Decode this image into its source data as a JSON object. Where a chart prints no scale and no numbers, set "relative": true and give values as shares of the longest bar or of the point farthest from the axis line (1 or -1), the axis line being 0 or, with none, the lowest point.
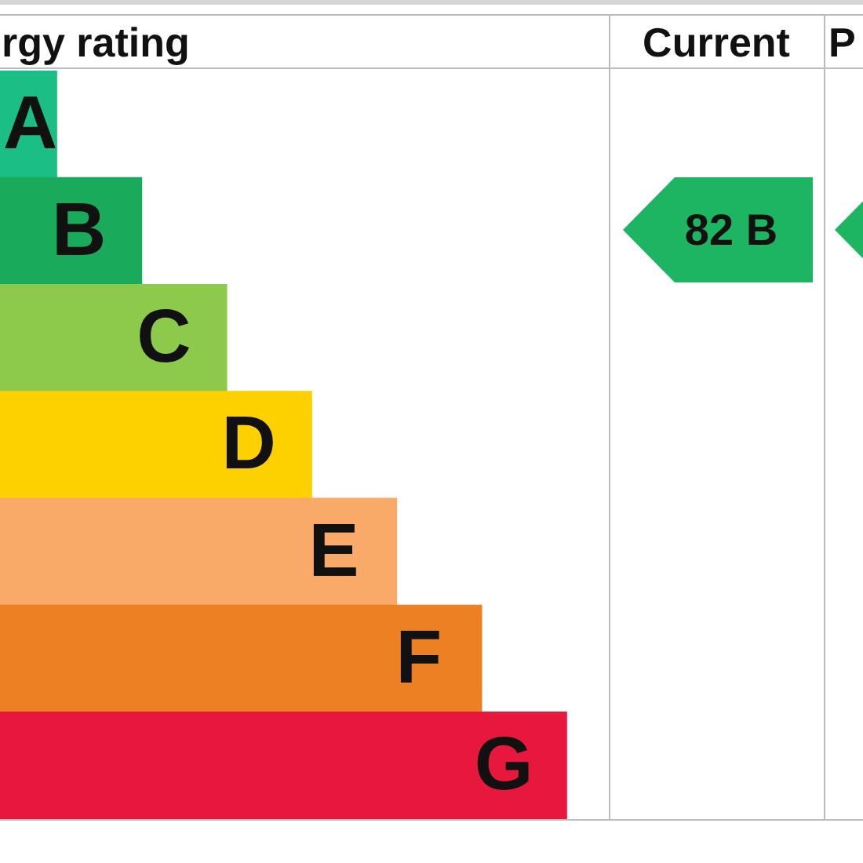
{
  "chart_data": {
    "type": "bar",
    "orientation": "horizontal",
    "relative": true,
    "title": "rgy rating",
    "categories": [
      "A",
      "B",
      "C",
      "D",
      "E",
      "F",
      "G"
    ],
    "values": [
      0.1,
      0.25,
      0.4,
      0.55,
      0.7,
      0.85,
      1
    ],
    "colors": [
      "#1bbf86",
      "#1aaa5b",
      "#8dc94a",
      "#fdd000",
      "#f9a968",
      "#ee8024",
      "#e8173e"
    ],
    "annotations": [
      "Current",
      "P",
      "82 B"
    ]
  }
}
